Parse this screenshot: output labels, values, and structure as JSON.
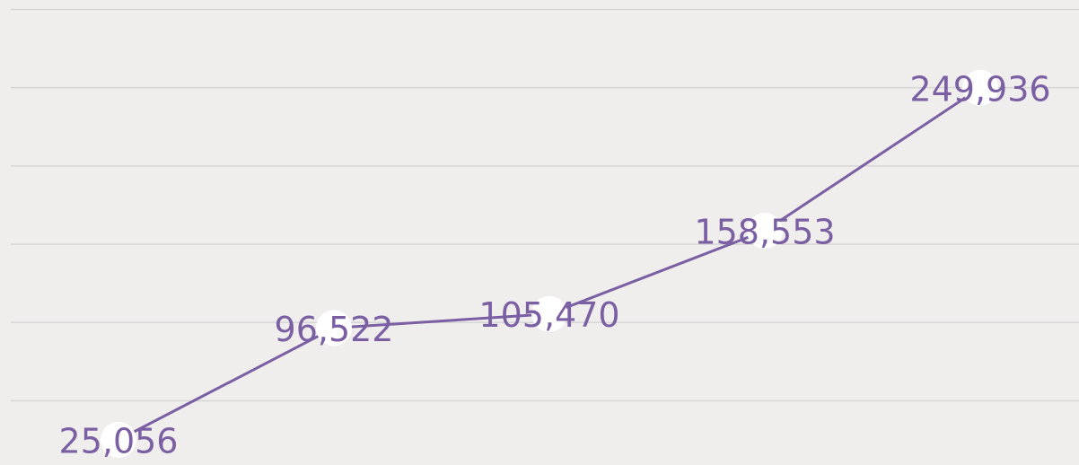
{
  "chart_data": {
    "type": "line",
    "categories": [
      null,
      null,
      null,
      null,
      null
    ],
    "series": [
      {
        "color": "#7b5fa3",
        "values": [
          25056,
          96522,
          105470,
          158553,
          249936
        ],
        "value_labels": [
          "25,056",
          "96,522",
          "105,470",
          "158,553",
          "249,936"
        ]
      }
    ],
    "ylim": [
      9000,
      306000
    ],
    "yticks": [
      50000,
      100000,
      150000,
      200000,
      250000,
      300000
    ],
    "grid": true
  }
}
